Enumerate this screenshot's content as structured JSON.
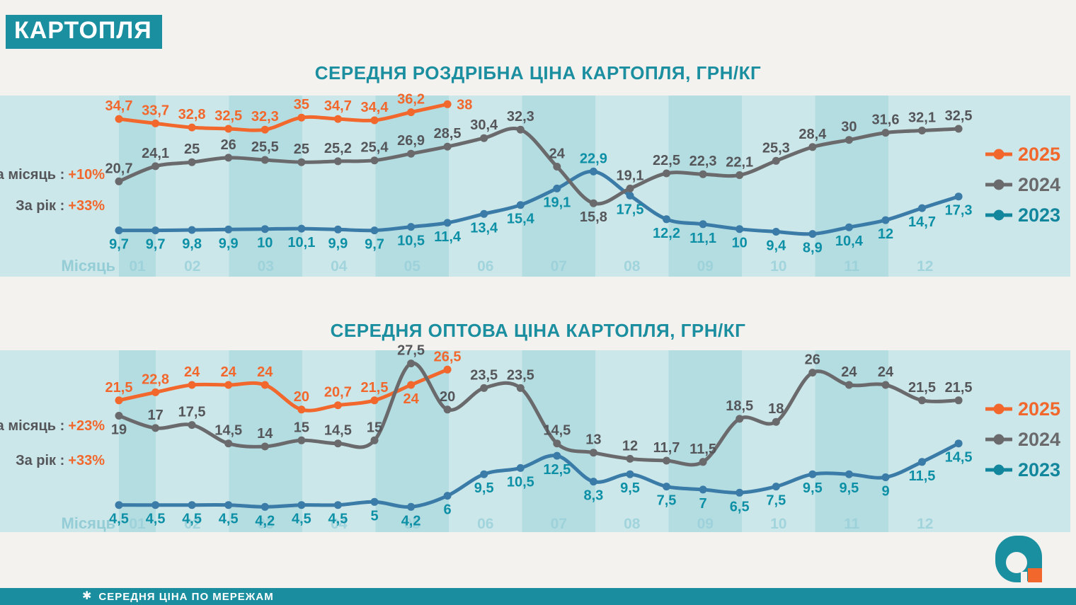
{
  "header": {
    "title": "КАРТОПЛЯ"
  },
  "footer": {
    "asterisk": "✱",
    "note": "СЕРЕДНЯ ЦІНА ПО МЕРЕЖАМ"
  },
  "colors": {
    "band_light": "#cbe7ea",
    "band_dark": "#b4dde2",
    "teal_brand": "#1a8fa0",
    "orange": "#f2672c",
    "gray_line": "#6a6a6c",
    "gray_label": "#55565a",
    "blue_line": "#3a7ba8",
    "teal_label": "#0d90a6",
    "month_label": "#9ad0d9",
    "month_axis": "#8fcad4"
  },
  "chart_data": [
    {
      "type": "line",
      "title": "СЕРЕДНЯ РОЗДРІБНА ЦІНА КАРТОПЛЯ, ГРН/КГ",
      "x_axis_label": "Місяць",
      "months": [
        "01",
        "02",
        "03",
        "04",
        "05",
        "06",
        "07",
        "08",
        "09",
        "10",
        "11",
        "12"
      ],
      "points_per_month": 2,
      "ylim": [
        8,
        40
      ],
      "grid": false,
      "legend_position": "right",
      "annotations": [
        {
          "label": "За місяць :",
          "value": "+10%"
        },
        {
          "label": "За рік :",
          "value": "+33%"
        }
      ],
      "series": [
        {
          "name": "2025",
          "color": "#f2672c",
          "label_color": "#f2672c",
          "default_label_pos": "above",
          "label_pos_overrides": {
            "9": "right"
          },
          "values": [
            34.7,
            33.7,
            32.8,
            32.5,
            32.3,
            35,
            34.7,
            34.4,
            36.2,
            38
          ],
          "labels": [
            "34,7",
            "33,7",
            "32,8",
            "32,5",
            "32,3",
            "35",
            "34,7",
            "34,4",
            "36,2",
            "38"
          ]
        },
        {
          "name": "2024",
          "color": "#6a6a6c",
          "label_color": "#55565a",
          "default_label_pos": "above",
          "label_pos_overrides": {
            "13": "below"
          },
          "values": [
            20.7,
            24.1,
            25,
            26,
            25.5,
            25,
            25.2,
            25.4,
            26.9,
            28.5,
            30.4,
            32.3,
            24,
            15.8,
            19.1,
            22.5,
            22.3,
            22.1,
            25.3,
            28.4,
            30,
            31.6,
            32.1,
            32.5
          ],
          "labels": [
            "20,7",
            "24,1",
            "25",
            "26",
            "25,5",
            "25",
            "25,2",
            "25,4",
            "26,9",
            "28,5",
            "30,4",
            "32,3",
            "24",
            "15,8",
            "19,1",
            "22,5",
            "22,3",
            "22,1",
            "25,3",
            "28,4",
            "30",
            "31,6",
            "32,1",
            "32,5"
          ]
        },
        {
          "name": "2023",
          "color": "#3a7ba8",
          "label_color": "#0d90a6",
          "default_label_pos": "below",
          "label_pos_overrides": {
            "13": "above"
          },
          "values": [
            9.7,
            9.7,
            9.8,
            9.9,
            10,
            10.1,
            9.9,
            9.7,
            10.5,
            11.4,
            13.4,
            15.4,
            19.1,
            22.9,
            17.5,
            12.2,
            11.1,
            10,
            9.4,
            8.9,
            10.4,
            12,
            14.7,
            17.3
          ],
          "labels": [
            "9,7",
            "9,7",
            "9,8",
            "9,9",
            "10",
            "10,1",
            "9,9",
            "9,7",
            "10,5",
            "11,4",
            "13,4",
            "15,4",
            "19,1",
            "22,9",
            "17,5",
            "12,2",
            "11,1",
            "10",
            "9,4",
            "8,9",
            "10,4",
            "12",
            "14,7",
            "17,3"
          ]
        }
      ],
      "legend": [
        {
          "label": "2025",
          "color": "#f2672c"
        },
        {
          "label": "2024",
          "color": "#6a6a6c"
        },
        {
          "label": "2023",
          "color": "#12869c"
        }
      ]
    },
    {
      "type": "line",
      "title": "СЕРЕДНЯ ОПТОВА ЦІНА КАРТОПЛЯ, ГРН/КГ",
      "x_axis_label": "Місяць",
      "months": [
        "01",
        "02",
        "03",
        "04",
        "05",
        "06",
        "07",
        "08",
        "09",
        "10",
        "11",
        "12"
      ],
      "points_per_month": 2,
      "ylim": [
        3,
        29
      ],
      "grid": false,
      "legend_position": "right",
      "annotations": [
        {
          "label": "За місяць :",
          "value": "+23%"
        },
        {
          "label": "За рік :",
          "value": "+33%"
        }
      ],
      "series": [
        {
          "name": "2025",
          "color": "#f2672c",
          "label_color": "#f2672c",
          "default_label_pos": "above",
          "label_pos_overrides": {
            "8": "below"
          },
          "values": [
            21.5,
            22.8,
            24,
            24,
            24,
            20,
            20.7,
            21.5,
            24,
            26.5
          ],
          "labels": [
            "21,5",
            "22,8",
            "24",
            "24",
            "24",
            "20",
            "20,7",
            "21,5",
            "24",
            "26,5"
          ]
        },
        {
          "name": "2024",
          "color": "#6a6a6c",
          "label_color": "#55565a",
          "default_label_pos": "above",
          "label_pos_overrides": {
            "0": "below"
          },
          "values": [
            19,
            17,
            17.5,
            14.5,
            14,
            15,
            14.5,
            15,
            27.5,
            20,
            23.5,
            23.5,
            14.5,
            13,
            12,
            11.7,
            11.5,
            18.5,
            18,
            26,
            24,
            24,
            21.5,
            21.5
          ],
          "labels": [
            "19",
            "17",
            "17,5",
            "14,5",
            "14",
            "15",
            "14,5",
            "15",
            "27,5",
            "20",
            "23,5",
            "23,5",
            "14,5",
            "13",
            "12",
            "11,7",
            "11,5",
            "18,5",
            "18",
            "26",
            "24",
            "24",
            "21,5",
            "21,5"
          ]
        },
        {
          "name": "2023",
          "color": "#3a7ba8",
          "label_color": "#0d90a6",
          "default_label_pos": "below",
          "label_pos_overrides": {},
          "values": [
            4.5,
            4.5,
            4.5,
            4.5,
            4.2,
            4.5,
            4.5,
            5,
            4.2,
            6,
            9.5,
            10.5,
            12.5,
            8.3,
            9.5,
            7.5,
            7,
            6.5,
            7.5,
            9.5,
            9.5,
            9,
            11.5,
            14.5
          ],
          "labels": [
            "4,5",
            "4,5",
            "4,5",
            "4,5",
            "4,2",
            "4,5",
            "4,5",
            "5",
            "4,2",
            "6",
            "9,5",
            "10,5",
            "12,5",
            "8,3",
            "9,5",
            "7,5",
            "7",
            "6,5",
            "7,5",
            "9,5",
            "9,5",
            "9",
            "11,5",
            "14,5"
          ]
        }
      ],
      "legend": [
        {
          "label": "2025",
          "color": "#f2672c"
        },
        {
          "label": "2024",
          "color": "#6a6a6c"
        },
        {
          "label": "2023",
          "color": "#12869c"
        }
      ]
    }
  ],
  "logo": {
    "teal": "#1a8fa0",
    "orange": "#f2672c"
  }
}
